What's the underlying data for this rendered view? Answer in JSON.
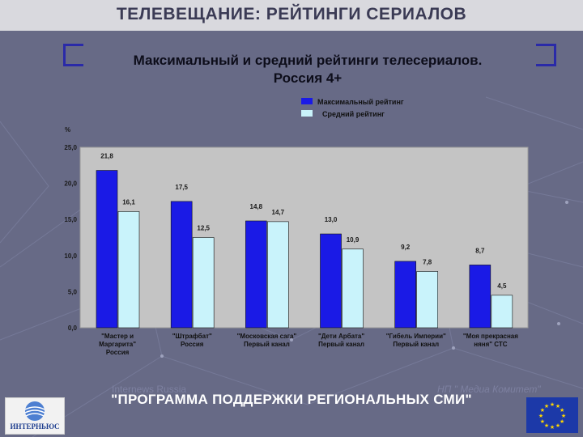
{
  "header": {
    "title": "ТЕЛЕВЕЩАНИЕ: РЕЙТИНГИ СЕРИАЛОВ"
  },
  "colors": {
    "max_series": "#1a1ae6",
    "avg_series": "#c9f3fb",
    "plot_bg": "#c4c4c4",
    "page_bg": "#676a86",
    "header_bg": "#d9d9de"
  },
  "chart_data": {
    "type": "bar",
    "title": [
      "Максимальный и средний рейтинги телесериалов.",
      "Россия 4+"
    ],
    "ylabel": "%",
    "xlabel": "",
    "ylim": [
      0,
      25
    ],
    "yticks": [
      "0,0",
      "5,0",
      "10,0",
      "15,0",
      "20,0",
      "25,0"
    ],
    "ytick_values": [
      0,
      5,
      10,
      15,
      20,
      25
    ],
    "grid": false,
    "legend_position": "top-right",
    "categories": [
      [
        "\"Мастер и",
        "Маргарита\"",
        "Россия"
      ],
      [
        "\"Штрафбат\"",
        "Россия"
      ],
      [
        "\"Московская сага\"",
        "Первый канал"
      ],
      [
        "\"Дети Арбата\"",
        "Первый канал"
      ],
      [
        "\"Гибель Империи\"",
        "Первый канал"
      ],
      [
        "\"Моя прекрасная",
        "няня\" СТС"
      ]
    ],
    "series": [
      {
        "name": "Максимальный рейтинг",
        "values": [
          21.8,
          17.5,
          14.8,
          13.0,
          9.2,
          8.7
        ],
        "labels": [
          "21,8",
          "17,5",
          "14,8",
          "13,0",
          "9,2",
          "8,7"
        ]
      },
      {
        "name": "Средний рейтинг",
        "values": [
          16.1,
          12.5,
          14.7,
          10.9,
          7.8,
          4.5
        ],
        "labels": [
          "16,1",
          "12,5",
          "14,7",
          "10,9",
          "7,8",
          "4,5"
        ]
      }
    ]
  },
  "footer": {
    "banner": "\"ПРОГРАММА ПОДДЕРЖКИ РЕГИОНАЛЬНЫХ СМИ\"",
    "watermark_left": "Internews Russia",
    "watermark_right": "НП \" Медиа Комитет\"",
    "logo_text": "ИНТЕРНЬЮС",
    "eu_flag_icon": "eu-flag-icon"
  }
}
